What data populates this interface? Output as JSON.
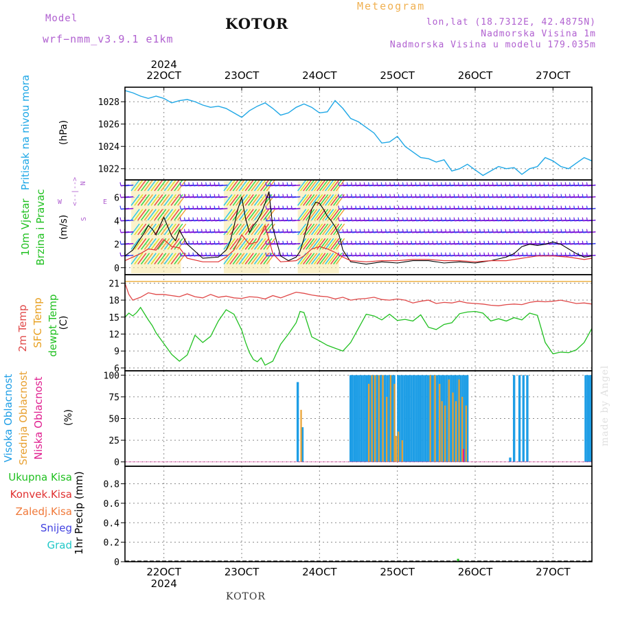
{
  "header": {
    "model_label": "Model",
    "model_name": "wrf−nmm_v3.9.1 e1km",
    "station": "KOTOR",
    "title": "Meteogram",
    "lonlat": "lon,lat (18.7312E, 42.4875N)",
    "altitude": "Nadmorska Visina 1m",
    "altitude_model": "Nadmorska Visina u modelu 179.035m"
  },
  "footer": {
    "station": "KOTOR"
  },
  "credit": "made by Angel",
  "colors": {
    "pressure": "#1ea7e6",
    "wind_speed": "#000000",
    "gust": "#e03030",
    "t2m": "#e04848",
    "sfc": "#e8a020",
    "dewpt": "#20c020",
    "cloud_high": "#1e9ee6",
    "cloud_mid": "#e8a030",
    "cloud_low": "#e02090",
    "precip": "#20c020"
  },
  "chart_data": [
    {
      "type": "line",
      "panel": "pressure",
      "x_ticks": [
        "22OCT",
        "23OCT",
        "24OCT",
        "25OCT",
        "26OCT",
        "27OCT"
      ],
      "year": "2024",
      "x_range_days": [
        21.5,
        27.5
      ],
      "ylabel": "(hPa)",
      "side_labels": [
        "Pritisak na nivou mora"
      ],
      "yticks": [
        1022,
        1024,
        1026,
        1028
      ],
      "ylim": [
        1021,
        1029.3
      ],
      "series": [
        {
          "color": "#1ea7e6",
          "x": [
            21.5,
            21.6,
            21.7,
            21.8,
            21.9,
            22.0,
            22.1,
            22.2,
            22.3,
            22.4,
            22.5,
            22.6,
            22.7,
            22.8,
            22.9,
            23.0,
            23.1,
            23.2,
            23.3,
            23.4,
            23.5,
            23.6,
            23.7,
            23.8,
            23.9,
            24.0,
            24.1,
            24.2,
            24.3,
            24.4,
            24.5,
            24.6,
            24.7,
            24.8,
            24.9,
            25.0,
            25.1,
            25.2,
            25.3,
            25.4,
            25.5,
            25.6,
            25.7,
            25.8,
            25.9,
            26.0,
            26.1,
            26.2,
            26.3,
            26.4,
            26.5,
            26.6,
            26.7,
            26.8,
            26.9,
            27.0,
            27.1,
            27.2,
            27.3,
            27.4,
            27.5
          ],
          "values": [
            1029.0,
            1028.8,
            1028.5,
            1028.3,
            1028.5,
            1028.3,
            1027.9,
            1028.1,
            1028.2,
            1028.0,
            1027.7,
            1027.5,
            1027.6,
            1027.4,
            1027.0,
            1026.6,
            1027.2,
            1027.6,
            1027.9,
            1027.4,
            1026.8,
            1027.0,
            1027.5,
            1027.8,
            1027.5,
            1027.0,
            1027.1,
            1028.1,
            1027.4,
            1026.5,
            1026.2,
            1025.7,
            1025.2,
            1024.3,
            1024.4,
            1024.9,
            1024.0,
            1023.5,
            1023.0,
            1022.9,
            1022.6,
            1022.8,
            1021.8,
            1022.0,
            1022.4,
            1021.9,
            1021.4,
            1021.8,
            1022.2,
            1022.0,
            1022.1,
            1021.5,
            1022.0,
            1022.2,
            1023.0,
            1022.7,
            1022.2,
            1022.0,
            1022.5,
            1023.0,
            1022.7
          ]
        }
      ]
    },
    {
      "type": "line",
      "panel": "wind",
      "ylabel": "(m/s)",
      "side_labels": [
        "10m Vjetar",
        "Brzina i Pravac"
      ],
      "compass": {
        "n": "N",
        "s": "S",
        "w": "W",
        "e": "E"
      },
      "yticks": [
        0,
        2,
        4,
        6
      ],
      "ylim": [
        -0.6,
        7.5
      ],
      "series": [
        {
          "name": "speed",
          "color": "#000000",
          "x": [
            21.5,
            21.6,
            21.7,
            21.75,
            21.8,
            21.85,
            21.9,
            21.95,
            22.0,
            22.05,
            22.1,
            22.15,
            22.2,
            22.3,
            22.5,
            22.7,
            22.8,
            22.85,
            22.9,
            22.95,
            23.0,
            23.05,
            23.1,
            23.15,
            23.2,
            23.25,
            23.3,
            23.35,
            23.4,
            23.5,
            23.6,
            23.7,
            23.75,
            23.8,
            23.85,
            23.9,
            23.95,
            24.0,
            24.05,
            24.1,
            24.15,
            24.2,
            24.25,
            24.3,
            24.4,
            24.6,
            24.8,
            25.0,
            25.2,
            25.4,
            25.6,
            25.8,
            26.0,
            26.2,
            26.4,
            26.5,
            26.6,
            26.7,
            26.8,
            26.9,
            27.0,
            27.1,
            27.2,
            27.3,
            27.4,
            27.5
          ],
          "values": [
            1.0,
            1.5,
            2.5,
            3.0,
            3.6,
            3.3,
            2.8,
            3.6,
            4.3,
            3.5,
            2.7,
            2.3,
            3.2,
            2.0,
            0.8,
            0.9,
            1.5,
            2.2,
            3.5,
            5.0,
            6.0,
            4.2,
            3.0,
            3.6,
            4.0,
            4.6,
            5.5,
            6.5,
            3.4,
            1.0,
            0.6,
            0.9,
            1.4,
            2.5,
            3.8,
            5.0,
            5.6,
            5.5,
            5.0,
            4.4,
            4.0,
            3.5,
            2.8,
            1.5,
            0.5,
            0.3,
            0.5,
            0.4,
            0.6,
            0.6,
            0.4,
            0.5,
            0.4,
            0.6,
            0.9,
            1.2,
            1.8,
            2.0,
            1.9,
            2.0,
            2.2,
            2.0,
            1.6,
            1.2,
            0.9,
            1.0
          ]
        },
        {
          "name": "gust",
          "color": "#e03030",
          "x": [
            21.5,
            21.7,
            21.8,
            21.9,
            22.0,
            22.1,
            22.2,
            22.3,
            22.5,
            22.7,
            22.8,
            22.9,
            23.0,
            23.1,
            23.2,
            23.3,
            23.4,
            23.5,
            23.7,
            23.8,
            23.9,
            24.0,
            24.1,
            24.2,
            24.3,
            24.4,
            24.6,
            24.8,
            25.0,
            25.2,
            25.4,
            25.6,
            25.8,
            26.0,
            26.2,
            26.4,
            26.6,
            26.8,
            27.0,
            27.2,
            27.4,
            27.5
          ],
          "values": [
            0.6,
            1.2,
            1.6,
            1.5,
            2.4,
            1.8,
            1.7,
            0.8,
            0.5,
            0.5,
            0.9,
            1.5,
            2.8,
            2.0,
            2.2,
            3.6,
            1.2,
            0.5,
            0.6,
            1.0,
            1.6,
            1.8,
            1.6,
            1.3,
            0.9,
            0.6,
            0.5,
            0.6,
            0.6,
            0.7,
            0.7,
            0.6,
            0.6,
            0.5,
            0.6,
            0.6,
            0.8,
            1.0,
            1.0,
            0.9,
            0.7,
            0.8
          ]
        }
      ]
    },
    {
      "type": "line",
      "panel": "temperature",
      "ylabel": "(C)",
      "side_labels": [
        "2m Temp",
        "SFC Temp",
        "dewpt Temp"
      ],
      "yticks": [
        6,
        9,
        12,
        15,
        18,
        21
      ],
      "ylim": [
        5.5,
        22.5
      ],
      "series": [
        {
          "name": "2m",
          "color": "#e04848",
          "x": [
            21.5,
            21.55,
            21.6,
            21.7,
            21.8,
            21.9,
            22.0,
            22.1,
            22.2,
            22.3,
            22.4,
            22.5,
            22.6,
            22.7,
            22.8,
            22.9,
            23.0,
            23.1,
            23.2,
            23.3,
            23.4,
            23.5,
            23.6,
            23.7,
            23.8,
            23.9,
            24.0,
            24.1,
            24.2,
            24.3,
            24.4,
            24.5,
            24.6,
            24.7,
            24.8,
            24.9,
            25.0,
            25.1,
            25.2,
            25.3,
            25.4,
            25.5,
            25.6,
            25.7,
            25.8,
            25.9,
            26.0,
            26.1,
            26.2,
            26.3,
            26.4,
            26.5,
            26.6,
            26.7,
            26.8,
            26.9,
            27.0,
            27.1,
            27.2,
            27.3,
            27.4,
            27.5
          ],
          "values": [
            21.0,
            19.0,
            18.0,
            18.5,
            19.3,
            19.0,
            19.0,
            18.8,
            18.6,
            19.1,
            18.6,
            18.4,
            19.0,
            18.5,
            18.7,
            18.4,
            18.3,
            18.6,
            18.5,
            18.2,
            18.8,
            18.4,
            18.9,
            19.4,
            19.2,
            18.9,
            18.7,
            18.6,
            18.2,
            18.5,
            18.0,
            18.2,
            18.3,
            18.5,
            18.1,
            18.0,
            18.2,
            18.0,
            17.5,
            17.8,
            18.0,
            17.4,
            17.6,
            17.5,
            17.8,
            17.5,
            17.4,
            17.3,
            17.1,
            17.0,
            17.2,
            17.3,
            17.2,
            17.6,
            17.8,
            17.7,
            17.8,
            18.0,
            17.7,
            17.4,
            17.5,
            17.3
          ]
        },
        {
          "name": "sfc",
          "color": "#e8a020",
          "x": [
            21.5,
            27.5
          ],
          "values": [
            21.3,
            21.3
          ]
        },
        {
          "name": "dewpt",
          "color": "#20c020",
          "x": [
            21.5,
            21.55,
            21.6,
            21.65,
            21.7,
            21.8,
            21.85,
            21.9,
            22.0,
            22.1,
            22.2,
            22.3,
            22.4,
            22.5,
            22.6,
            22.7,
            22.8,
            22.9,
            23.0,
            23.05,
            23.1,
            23.15,
            23.2,
            23.25,
            23.3,
            23.4,
            23.5,
            23.6,
            23.7,
            23.75,
            23.8,
            23.9,
            24.0,
            24.1,
            24.2,
            24.3,
            24.4,
            24.5,
            24.6,
            24.7,
            24.8,
            24.9,
            25.0,
            25.1,
            25.2,
            25.3,
            25.4,
            25.5,
            25.6,
            25.7,
            25.8,
            25.9,
            26.0,
            26.1,
            26.2,
            26.3,
            26.4,
            26.5,
            26.6,
            26.7,
            26.8,
            26.9,
            27.0,
            27.1,
            27.2,
            27.3,
            27.4,
            27.5
          ],
          "values": [
            15.0,
            15.7,
            15.2,
            15.8,
            16.7,
            14.5,
            13.5,
            12.2,
            10.3,
            8.4,
            7.2,
            8.3,
            11.8,
            10.5,
            11.6,
            14.3,
            16.3,
            15.5,
            12.7,
            10.5,
            8.7,
            7.5,
            7.1,
            7.8,
            6.5,
            7.2,
            10.2,
            12.0,
            14.0,
            16.0,
            15.8,
            11.5,
            10.8,
            10.0,
            9.5,
            9.0,
            10.5,
            13.0,
            15.5,
            15.2,
            14.5,
            15.5,
            14.4,
            14.6,
            14.3,
            15.4,
            13.2,
            12.8,
            13.7,
            14.0,
            15.6,
            15.9,
            16.0,
            15.7,
            14.3,
            14.7,
            14.3,
            14.9,
            14.5,
            15.7,
            15.3,
            10.5,
            8.5,
            8.8,
            8.7,
            9.2,
            10.5,
            13.0
          ]
        }
      ]
    },
    {
      "type": "bar",
      "panel": "clouds",
      "ylabel": "(%)",
      "side_labels": [
        "Visoka Oblacnost",
        "Srednja Oblacnost",
        "Niska Oblacnost"
      ],
      "yticks": [
        0,
        25,
        50,
        75,
        100
      ],
      "ylim": [
        -5,
        105
      ],
      "series": [
        {
          "name": "high",
          "color": "#1e9ee6",
          "x": [
            23.72,
            23.78,
            24.4,
            24.42,
            24.45,
            24.48,
            24.51,
            24.54,
            24.57,
            24.6,
            24.63,
            24.66,
            24.69,
            24.72,
            24.75,
            24.78,
            24.81,
            24.84,
            24.87,
            24.9,
            24.93,
            24.96,
            25.01,
            25.03,
            25.06,
            25.09,
            25.12,
            25.15,
            25.18,
            25.21,
            25.24,
            25.27,
            25.3,
            25.33,
            25.36,
            25.39,
            25.42,
            25.45,
            25.48,
            25.51,
            25.54,
            25.57,
            25.6,
            25.63,
            25.66,
            25.69,
            25.72,
            25.75,
            25.78,
            25.81,
            25.84,
            25.87,
            25.9,
            26.45,
            26.5,
            26.57,
            26.62,
            26.67,
            27.42,
            27.45,
            27.48
          ],
          "values": [
            92,
            40,
            100,
            100,
            100,
            100,
            100,
            100,
            100,
            100,
            100,
            100,
            100,
            100,
            100,
            100,
            100,
            100,
            100,
            100,
            100,
            100,
            100,
            100,
            100,
            100,
            100,
            100,
            100,
            100,
            100,
            100,
            100,
            100,
            100,
            100,
            100,
            100,
            100,
            100,
            100,
            100,
            100,
            100,
            100,
            100,
            100,
            100,
            100,
            100,
            100,
            100,
            100,
            5,
            100,
            100,
            100,
            100,
            100,
            100,
            100
          ]
        },
        {
          "name": "mid",
          "color": "#e8a030",
          "x": [
            23.75,
            24.62,
            24.66,
            24.7,
            24.75,
            24.8,
            24.85,
            24.9,
            24.95,
            24.97,
            25.0,
            25.05,
            25.41,
            25.47,
            25.53,
            25.56,
            25.6,
            25.65,
            25.7,
            25.74,
            25.78,
            25.82,
            25.87
          ],
          "values": [
            60,
            90,
            100,
            100,
            100,
            100,
            75,
            100,
            90,
            30,
            35,
            25,
            100,
            100,
            90,
            70,
            65,
            95,
            80,
            70,
            95,
            75,
            65
          ]
        },
        {
          "name": "low",
          "color": "#e02090",
          "x": [
            25.85
          ],
          "values": [
            15
          ]
        }
      ]
    },
    {
      "type": "bar",
      "panel": "precip",
      "ylabel": "1hr Precip (mm)",
      "side_labels": [
        "Ukupna Kisa",
        "Konvek.Kisa",
        "Zaledj.Kisa",
        "Snijeg",
        "Grad"
      ],
      "side_colors": [
        "#20c020",
        "#e03030",
        "#f07838",
        "#4040e0",
        "#20c8c8"
      ],
      "yticks": [
        0,
        0.2,
        0.4,
        0.6,
        0.8
      ],
      "ylim": [
        0,
        0.98
      ],
      "series": [
        {
          "name": "total",
          "color": "#20c020",
          "x": [
            25.78
          ],
          "values": [
            0.03
          ]
        }
      ]
    }
  ]
}
